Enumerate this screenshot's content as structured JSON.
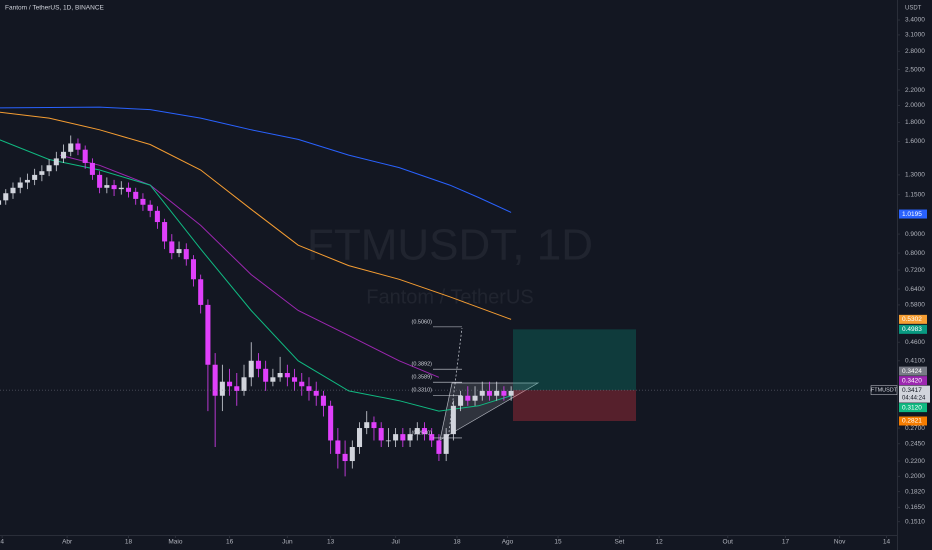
{
  "chart_data": {
    "type": "candlestick",
    "title": "Fantom / TetherUS, 1D, BINANCE",
    "watermark": "FTMUSDT, 1D",
    "watermark_subtitle": "Fantom / TetherUS",
    "currency": "USDT",
    "log_scale": true,
    "grid": false,
    "up_color": "#d1d4dc",
    "down_color": "#e040fb",
    "xlim": [
      72.4,
      320.9
    ],
    "ylim": [
      0.139,
      3.85
    ],
    "xticks": [
      {
        "value": 73,
        "label": "4"
      },
      {
        "value": 91,
        "label": "Abr"
      },
      {
        "value": 108,
        "label": "18"
      },
      {
        "value": 121,
        "label": "Maio"
      },
      {
        "value": 136,
        "label": "16"
      },
      {
        "value": 152,
        "label": "Jun"
      },
      {
        "value": 164,
        "label": "13"
      },
      {
        "value": 182,
        "label": "Jul"
      },
      {
        "value": 199,
        "label": "18"
      },
      {
        "value": 213,
        "label": "Ago"
      },
      {
        "value": 227,
        "label": "15"
      },
      {
        "value": 244,
        "label": "Set"
      },
      {
        "value": 255,
        "label": "12"
      },
      {
        "value": 274,
        "label": "Out"
      },
      {
        "value": 290,
        "label": "17"
      },
      {
        "value": 305,
        "label": "Nov"
      },
      {
        "value": 318,
        "label": "14"
      }
    ],
    "yticks": [
      {
        "value": 3.4,
        "label": "3.4000"
      },
      {
        "value": 3.1,
        "label": "3.1000"
      },
      {
        "value": 2.8,
        "label": "2.8000"
      },
      {
        "value": 2.5,
        "label": "2.5000"
      },
      {
        "value": 2.2,
        "label": "2.2000"
      },
      {
        "value": 2.0,
        "label": "2.0000"
      },
      {
        "value": 1.8,
        "label": "1.8000"
      },
      {
        "value": 1.6,
        "label": "1.6000"
      },
      {
        "value": 1.3,
        "label": "1.3000"
      },
      {
        "value": 1.15,
        "label": "1.1500"
      },
      {
        "value": 0.9,
        "label": "0.9000"
      },
      {
        "value": 0.8,
        "label": "0.8000"
      },
      {
        "value": 0.72,
        "label": "0.7200"
      },
      {
        "value": 0.64,
        "label": "0.6400"
      },
      {
        "value": 0.58,
        "label": "0.5800"
      },
      {
        "value": 0.46,
        "label": "0.4600"
      },
      {
        "value": 0.41,
        "label": "0.4100"
      },
      {
        "value": 0.27,
        "label": "0.2700"
      },
      {
        "value": 0.245,
        "label": "0.2450"
      },
      {
        "value": 0.22,
        "label": "0.2200"
      },
      {
        "value": 0.2,
        "label": "0.2000"
      },
      {
        "value": 0.182,
        "label": "0.1820"
      },
      {
        "value": 0.165,
        "label": "0.1650"
      },
      {
        "value": 0.151,
        "label": "0.1510"
      }
    ],
    "x": [
      72,
      74,
      76,
      78,
      80,
      82,
      84,
      86,
      88,
      90,
      92,
      94,
      96,
      98,
      100,
      102,
      104,
      106,
      108,
      110,
      112,
      114,
      116,
      118,
      120,
      122,
      124,
      126,
      128,
      130,
      132,
      134,
      136,
      138,
      140,
      142,
      144,
      146,
      148,
      150,
      152,
      154,
      156,
      158,
      160,
      162,
      164,
      166,
      168,
      170,
      172,
      174,
      176,
      178,
      180,
      182,
      184,
      186,
      188,
      190,
      192,
      194,
      196,
      198,
      200,
      202,
      204,
      206,
      208,
      210,
      212,
      214
    ],
    "candles": [
      [
        1.08,
        1.15,
        1.04,
        1.11
      ],
      [
        1.11,
        1.19,
        1.08,
        1.16
      ],
      [
        1.16,
        1.24,
        1.12,
        1.2
      ],
      [
        1.2,
        1.28,
        1.16,
        1.24
      ],
      [
        1.24,
        1.31,
        1.19,
        1.26
      ],
      [
        1.26,
        1.35,
        1.22,
        1.3
      ],
      [
        1.3,
        1.38,
        1.25,
        1.33
      ],
      [
        1.33,
        1.43,
        1.29,
        1.38
      ],
      [
        1.38,
        1.5,
        1.33,
        1.44
      ],
      [
        1.44,
        1.57,
        1.4,
        1.5
      ],
      [
        1.5,
        1.66,
        1.46,
        1.58
      ],
      [
        1.58,
        1.63,
        1.47,
        1.52
      ],
      [
        1.52,
        1.56,
        1.35,
        1.4
      ],
      [
        1.4,
        1.44,
        1.26,
        1.3
      ],
      [
        1.3,
        1.33,
        1.16,
        1.2
      ],
      [
        1.2,
        1.28,
        1.16,
        1.22
      ],
      [
        1.22,
        1.26,
        1.14,
        1.19
      ],
      [
        1.19,
        1.25,
        1.15,
        1.2
      ],
      [
        1.2,
        1.24,
        1.13,
        1.17
      ],
      [
        1.17,
        1.2,
        1.08,
        1.12
      ],
      [
        1.12,
        1.16,
        1.04,
        1.08
      ],
      [
        1.08,
        1.11,
        1.0,
        1.04
      ],
      [
        1.04,
        1.07,
        0.93,
        0.97
      ],
      [
        0.97,
        0.99,
        0.82,
        0.86
      ],
      [
        0.86,
        0.9,
        0.77,
        0.8
      ],
      [
        0.8,
        0.86,
        0.78,
        0.82
      ],
      [
        0.82,
        0.85,
        0.74,
        0.77
      ],
      [
        0.77,
        0.79,
        0.65,
        0.68
      ],
      [
        0.68,
        0.7,
        0.55,
        0.58
      ],
      [
        0.58,
        0.6,
        0.3,
        0.4
      ],
      [
        0.4,
        0.43,
        0.24,
        0.33
      ],
      [
        0.33,
        0.4,
        0.3,
        0.36
      ],
      [
        0.36,
        0.39,
        0.33,
        0.35
      ],
      [
        0.35,
        0.38,
        0.31,
        0.34
      ],
      [
        0.34,
        0.4,
        0.33,
        0.37
      ],
      [
        0.37,
        0.46,
        0.35,
        0.41
      ],
      [
        0.41,
        0.43,
        0.37,
        0.39
      ],
      [
        0.39,
        0.41,
        0.34,
        0.36
      ],
      [
        0.36,
        0.39,
        0.35,
        0.37
      ],
      [
        0.37,
        0.42,
        0.36,
        0.38
      ],
      [
        0.38,
        0.4,
        0.35,
        0.37
      ],
      [
        0.37,
        0.39,
        0.34,
        0.36
      ],
      [
        0.36,
        0.38,
        0.33,
        0.35
      ],
      [
        0.35,
        0.37,
        0.32,
        0.34
      ],
      [
        0.34,
        0.36,
        0.31,
        0.33
      ],
      [
        0.33,
        0.34,
        0.29,
        0.31
      ],
      [
        0.31,
        0.32,
        0.23,
        0.25
      ],
      [
        0.25,
        0.27,
        0.21,
        0.23
      ],
      [
        0.23,
        0.25,
        0.2,
        0.22
      ],
      [
        0.22,
        0.25,
        0.21,
        0.24
      ],
      [
        0.24,
        0.28,
        0.23,
        0.27
      ],
      [
        0.27,
        0.3,
        0.26,
        0.28
      ],
      [
        0.28,
        0.29,
        0.25,
        0.27
      ],
      [
        0.27,
        0.28,
        0.24,
        0.25
      ],
      [
        0.25,
        0.27,
        0.24,
        0.25
      ],
      [
        0.25,
        0.27,
        0.24,
        0.26
      ],
      [
        0.26,
        0.27,
        0.24,
        0.25
      ],
      [
        0.25,
        0.27,
        0.24,
        0.26
      ],
      [
        0.26,
        0.28,
        0.25,
        0.27
      ],
      [
        0.27,
        0.28,
        0.25,
        0.26
      ],
      [
        0.26,
        0.27,
        0.24,
        0.25
      ],
      [
        0.25,
        0.26,
        0.22,
        0.23
      ],
      [
        0.23,
        0.27,
        0.22,
        0.26
      ],
      [
        0.26,
        0.32,
        0.25,
        0.31
      ],
      [
        0.31,
        0.34,
        0.3,
        0.33
      ],
      [
        0.33,
        0.35,
        0.31,
        0.32
      ],
      [
        0.32,
        0.35,
        0.31,
        0.33
      ],
      [
        0.33,
        0.36,
        0.32,
        0.34
      ],
      [
        0.34,
        0.36,
        0.32,
        0.33
      ],
      [
        0.33,
        0.36,
        0.32,
        0.34
      ],
      [
        0.34,
        0.35,
        0.32,
        0.33
      ],
      [
        0.33,
        0.35,
        0.32,
        0.34
      ]
    ],
    "series": [
      {
        "color": "#2962ff",
        "x": [
          72,
          100,
          114,
          128,
          142,
          155,
          169,
          183,
          197,
          205,
          214
        ],
        "values": [
          1.97,
          1.98,
          1.95,
          1.85,
          1.72,
          1.62,
          1.47,
          1.36,
          1.22,
          1.13,
          1.03
        ]
      },
      {
        "color": "#f59d32",
        "x": [
          72,
          86,
          100,
          114,
          128,
          142,
          155,
          169,
          183,
          197,
          214
        ],
        "values": [
          1.92,
          1.85,
          1.72,
          1.57,
          1.34,
          1.05,
          0.84,
          0.74,
          0.68,
          0.61,
          0.53
        ]
      },
      {
        "color": "#9c27b0",
        "x": [
          89,
          100,
          114,
          128,
          142,
          155,
          169,
          183,
          194
        ],
        "values": [
          1.47,
          1.38,
          1.22,
          0.95,
          0.7,
          0.56,
          0.48,
          0.41,
          0.37
        ]
      },
      {
        "color": "#10b981",
        "x": [
          72,
          86,
          100,
          114,
          128,
          142,
          155,
          169,
          183,
          194,
          205,
          214
        ],
        "values": [
          1.62,
          1.43,
          1.34,
          1.22,
          0.82,
          0.56,
          0.41,
          0.34,
          0.32,
          0.3,
          0.31,
          0.33
        ]
      }
    ],
    "fib": {
      "color": "#d1d4dc",
      "levels": [
        {
          "value": 0.506,
          "label": "(0.5060)"
        },
        {
          "value": 0.3892,
          "label": "(0.3892)"
        },
        {
          "value": 0.3589,
          "label": "(0.3589)"
        },
        {
          "value": 0.331,
          "label": "(0.3310)"
        },
        {
          "value": 0.254,
          "label": "(0.2540)"
        }
      ]
    },
    "position": {
      "target": 0.4983,
      "entry": 0.3417,
      "stop": 0.2821
    },
    "axis_tags": [
      {
        "value": 1.0195,
        "label": "1.0195",
        "color": "#2962ff"
      },
      {
        "value": 0.5302,
        "label": "0.5302",
        "color": "#f59d32"
      },
      {
        "value": 0.4983,
        "label": "0.4983",
        "color": "#089981"
      },
      {
        "value": 0.3424,
        "label": "0.3424",
        "color": "#787b86"
      },
      {
        "value": 0.342,
        "label": "0.3420",
        "color": "#9c27b0"
      },
      {
        "value": 0.312,
        "label": "0.3120",
        "color": "#10b981"
      },
      {
        "value": 0.2821,
        "label": "0.2821",
        "color": "#f57c00"
      }
    ],
    "price_tag": {
      "symbol": "FTMUSDT",
      "value": 0.3417,
      "label": "0.3417",
      "countdown": "04:44:24"
    }
  }
}
